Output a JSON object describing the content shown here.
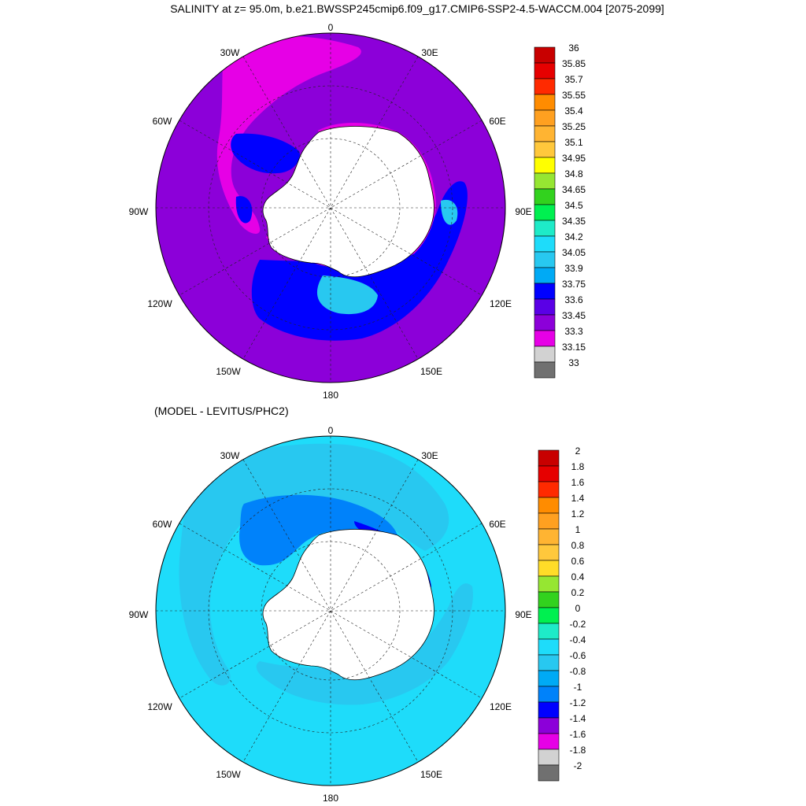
{
  "title": "SALINITY at z=  95.0m, b.e21.BWSSP245cmip6.f09_g17.CMIP6-SSP2-4.5-WACCM.004 [2075-2099]",
  "subtitle": "(MODEL - LEVITUS/PHC2)",
  "longitude_labels": [
    "0",
    "30E",
    "60E",
    "90E",
    "120E",
    "150E",
    "180",
    "150W",
    "120W",
    "90W",
    "60W",
    "30W"
  ],
  "colors": {
    "ocean_top": "#8C00D9",
    "ocean_bottom": "#1EDCFA",
    "land": "#FFFFFF",
    "coast": "#000000"
  },
  "panels": [
    {
      "name": "salinity",
      "colorbar": {
        "levels": [
          "36",
          "35.85",
          "35.7",
          "35.55",
          "35.4",
          "35.25",
          "35.1",
          "34.95",
          "34.8",
          "34.65",
          "34.5",
          "34.35",
          "34.2",
          "34.05",
          "33.9",
          "33.75",
          "33.6",
          "33.45",
          "33.3",
          "33.15",
          "33"
        ],
        "colors": [
          "#C80000",
          "#E60000",
          "#FF2A00",
          "#FF8C00",
          "#FFA020",
          "#FFB432",
          "#FFC83C",
          "#FFFF00",
          "#96E632",
          "#32D21E",
          "#00F050",
          "#1EEBC8",
          "#1EDCFA",
          "#28C8F0",
          "#00AAF5",
          "#0000FF",
          "#5A00E6",
          "#8C00D9",
          "#E600E6",
          "#D2D2D2",
          "#707070"
        ]
      }
    },
    {
      "name": "difference",
      "colorbar": {
        "levels": [
          "2",
          "1.8",
          "1.6",
          "1.4",
          "1.2",
          "1",
          "0.8",
          "0.6",
          "0.4",
          "0.2",
          "0",
          "-0.2",
          "-0.4",
          "-0.6",
          "-0.8",
          "-1",
          "-1.2",
          "-1.4",
          "-1.6",
          "-1.8",
          "-2"
        ],
        "colors": [
          "#C80000",
          "#E60000",
          "#FF2A00",
          "#FF8C00",
          "#FFA020",
          "#FFB432",
          "#FFC83C",
          "#FFDC28",
          "#96E632",
          "#32D21E",
          "#00F050",
          "#1EEBC8",
          "#1EDCFA",
          "#28C8F0",
          "#00AAF5",
          "#0082FA",
          "#0000FF",
          "#8C00D9",
          "#E600E6",
          "#D2D2D2",
          "#707070"
        ]
      }
    }
  ]
}
